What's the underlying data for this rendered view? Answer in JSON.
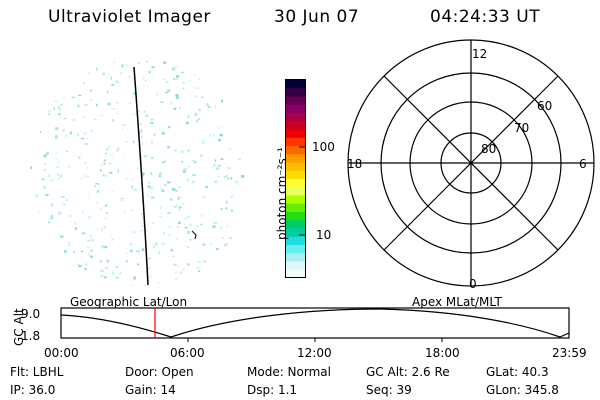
{
  "header": {
    "instrument": "Ultraviolet Imager",
    "date": "30 Jun 07",
    "time": "04:24:33 UT"
  },
  "colorbar": {
    "unit_label": "photon cm⁻²s⁻¹",
    "tick_labels": [
      "100",
      "10"
    ],
    "colors": [
      "#000033",
      "#330044",
      "#660055",
      "#880066",
      "#aa0044",
      "#cc0022",
      "#ee0000",
      "#ff3300",
      "#ff6600",
      "#ff9900",
      "#ffbb00",
      "#ffdd00",
      "#ffff33",
      "#eeff66",
      "#aaff00",
      "#66ee00",
      "#22dd11",
      "#00cc66",
      "#00ccaa",
      "#22dddd",
      "#66eeee",
      "#aaf0f0",
      "#ddf8f8",
      "#f4fcfc"
    ]
  },
  "polar_plot": {
    "mlt_labels": {
      "top": "12",
      "bottom": "0",
      "left": "18",
      "right": "6"
    },
    "lat_labels": [
      "60",
      "70",
      "80"
    ]
  },
  "orbit_plot": {
    "left_title": "Geographic Lat/Lon",
    "right_title": "Apex MLat/MLT",
    "y_axis_label": "GC Alt",
    "y_ticks": [
      "9.0",
      "1.8"
    ],
    "x_ticks": [
      "00:00",
      "06:00",
      "12:00",
      "18:00",
      "23:59"
    ],
    "marker_color": "#ff0000"
  },
  "status": {
    "flt": "Flt: LBHL",
    "door": "Door: Open",
    "mode": "Mode:  Normal",
    "gc_alt": "GC Alt: 2.6 Re",
    "glat": "GLat:  40.3",
    "ip": "IP: 36.0",
    "gain": "Gain: 14",
    "dsp": "Dsp:     1.1",
    "seq": "Seq: 39",
    "glon": "GLon: 345.8"
  }
}
